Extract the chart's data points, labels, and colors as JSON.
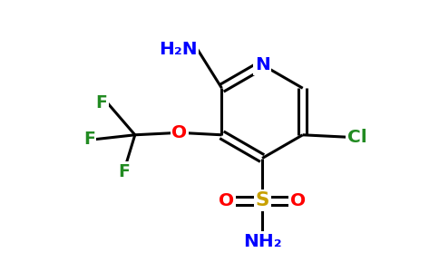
{
  "bg_color": "#ffffff",
  "atom_colors": {
    "N": "#0000ff",
    "O": "#ff0000",
    "F": "#228b22",
    "Cl": "#228b22",
    "S": "#c8a000",
    "C": "#000000",
    "H": "#000000"
  },
  "bond_color": "#000000",
  "bond_width": 2.2,
  "font_size": 14.5
}
